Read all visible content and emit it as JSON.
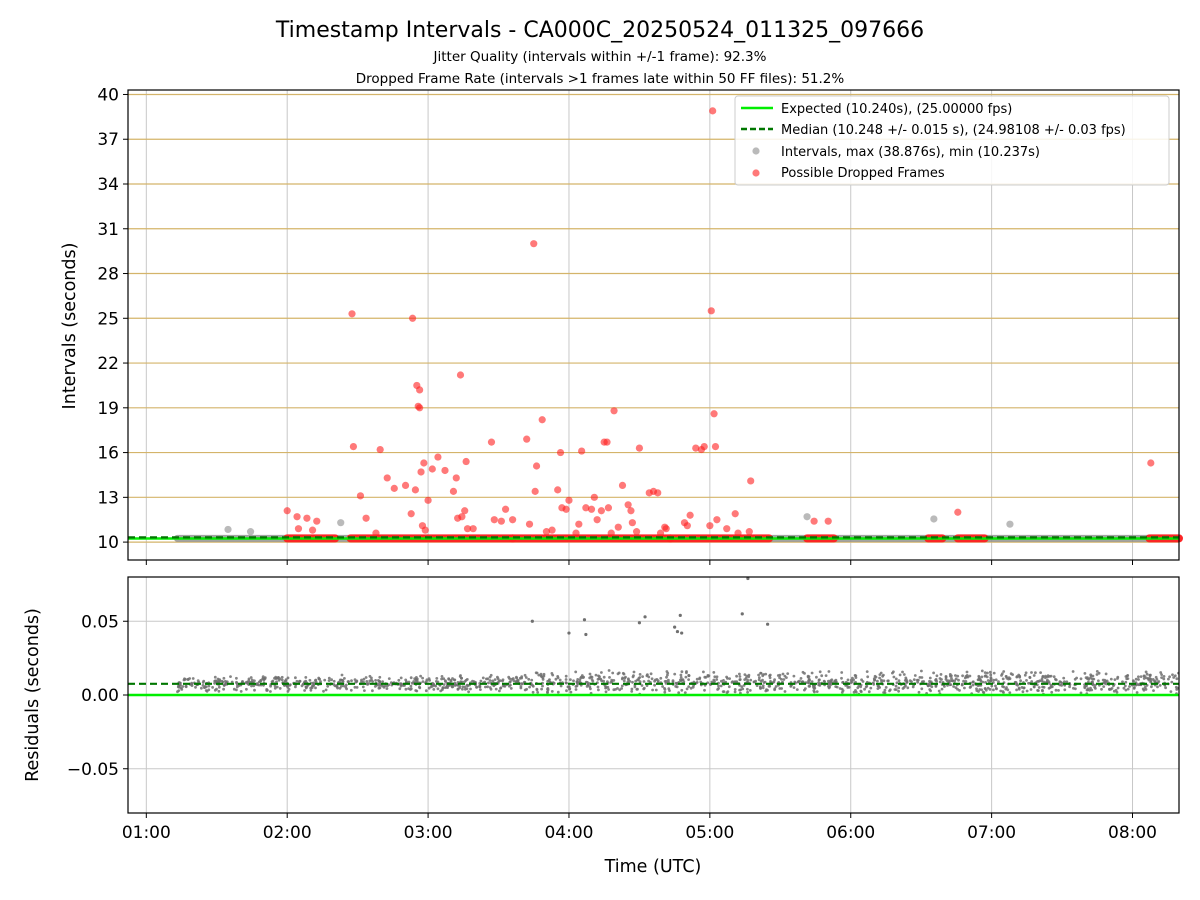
{
  "figure": {
    "title": "Timestamp Intervals - CA000C_20250524_011325_097666",
    "subtitle_1": "Jitter Quality (intervals within +/-1 frame): 92.3%",
    "subtitle_2": "Dropped Frame Rate (intervals >1 frames late within 50 FF files): 51.2%",
    "xlabel": "Time (UTC)"
  },
  "colors": {
    "expected": "#00ee00",
    "median": "#007700",
    "intervals": "#8c8c8c",
    "dropped": "#ff2020",
    "hgrid_top": "#d4b46a",
    "grid": "#c8c8c8",
    "residual_points": "#707070"
  },
  "chart_data": [
    {
      "type": "scatter",
      "ylabel": "Intervals (seconds)",
      "xlim_hours": [
        0.87,
        8.33
      ],
      "ylim": [
        8.8,
        40.3
      ],
      "x_ticks": [
        "01:00",
        "02:00",
        "03:00",
        "04:00",
        "05:00",
        "06:00",
        "07:00",
        "08:00"
      ],
      "x_tick_hours": [
        1,
        2,
        3,
        4,
        5,
        6,
        7,
        8
      ],
      "y_ticks": [
        10,
        13,
        16,
        19,
        22,
        25,
        28,
        31,
        34,
        37,
        40
      ],
      "grid": true,
      "legend_position": "top-right",
      "legend": [
        "Expected (10.240s), (25.00000 fps)",
        "Median (10.248 +/- 0.015 s), (24.98108 +/- 0.03 fps)",
        "Intervals, max (38.876s), min (10.237s)",
        "Possible Dropped Frames"
      ],
      "expected_value": 10.24,
      "median_value": 10.248,
      "interval_band": {
        "x_start": 1.22,
        "x_end": 8.33,
        "y": 10.25
      },
      "interval_outliers": [
        {
          "x": 1.58,
          "y": 10.85
        },
        {
          "x": 1.74,
          "y": 10.7
        },
        {
          "x": 2.38,
          "y": 11.3
        },
        {
          "x": 5.69,
          "y": 11.7
        },
        {
          "x": 6.59,
          "y": 11.55
        },
        {
          "x": 7.13,
          "y": 11.2
        }
      ],
      "dropped_bands": [
        [
          2.0,
          2.34
        ],
        [
          2.45,
          3.6
        ],
        [
          3.6,
          4.72
        ],
        [
          4.72,
          5.42
        ],
        [
          5.69,
          5.88
        ],
        [
          6.55,
          6.65
        ],
        [
          6.76,
          6.95
        ],
        [
          8.12,
          8.33
        ]
      ],
      "dropped_base_y": 10.25,
      "dropped_frames": [
        {
          "x": 2.0,
          "y": 12.1
        },
        {
          "x": 2.07,
          "y": 11.7
        },
        {
          "x": 2.08,
          "y": 10.9
        },
        {
          "x": 2.14,
          "y": 11.6
        },
        {
          "x": 2.18,
          "y": 10.8
        },
        {
          "x": 2.21,
          "y": 11.4
        },
        {
          "x": 2.46,
          "y": 25.3
        },
        {
          "x": 2.47,
          "y": 16.4
        },
        {
          "x": 2.52,
          "y": 13.1
        },
        {
          "x": 2.56,
          "y": 11.6
        },
        {
          "x": 2.63,
          "y": 10.6
        },
        {
          "x": 2.66,
          "y": 16.2
        },
        {
          "x": 2.71,
          "y": 14.3
        },
        {
          "x": 2.76,
          "y": 13.6
        },
        {
          "x": 2.84,
          "y": 13.8
        },
        {
          "x": 2.88,
          "y": 11.9
        },
        {
          "x": 2.89,
          "y": 25.0
        },
        {
          "x": 2.91,
          "y": 13.5
        },
        {
          "x": 2.92,
          "y": 20.5
        },
        {
          "x": 2.93,
          "y": 19.1
        },
        {
          "x": 2.94,
          "y": 19.0
        },
        {
          "x": 2.94,
          "y": 20.2
        },
        {
          "x": 2.95,
          "y": 14.7
        },
        {
          "x": 2.96,
          "y": 11.1
        },
        {
          "x": 2.97,
          "y": 15.3
        },
        {
          "x": 2.98,
          "y": 10.8
        },
        {
          "x": 3.0,
          "y": 12.8
        },
        {
          "x": 3.03,
          "y": 14.9
        },
        {
          "x": 3.07,
          "y": 15.7
        },
        {
          "x": 3.12,
          "y": 14.8
        },
        {
          "x": 3.18,
          "y": 13.4
        },
        {
          "x": 3.2,
          "y": 14.3
        },
        {
          "x": 3.21,
          "y": 11.6
        },
        {
          "x": 3.23,
          "y": 21.2
        },
        {
          "x": 3.24,
          "y": 11.7
        },
        {
          "x": 3.26,
          "y": 12.1
        },
        {
          "x": 3.27,
          "y": 15.4
        },
        {
          "x": 3.28,
          "y": 10.9
        },
        {
          "x": 3.32,
          "y": 10.9
        },
        {
          "x": 3.45,
          "y": 16.7
        },
        {
          "x": 3.47,
          "y": 11.5
        },
        {
          "x": 3.52,
          "y": 11.4
        },
        {
          "x": 3.55,
          "y": 12.2
        },
        {
          "x": 3.6,
          "y": 11.5
        },
        {
          "x": 3.7,
          "y": 16.9
        },
        {
          "x": 3.72,
          "y": 11.2
        },
        {
          "x": 3.75,
          "y": 30.0
        },
        {
          "x": 3.76,
          "y": 13.4
        },
        {
          "x": 3.77,
          "y": 15.1
        },
        {
          "x": 3.81,
          "y": 18.2
        },
        {
          "x": 3.84,
          "y": 10.7
        },
        {
          "x": 3.88,
          "y": 10.8
        },
        {
          "x": 3.92,
          "y": 13.5
        },
        {
          "x": 3.94,
          "y": 16.0
        },
        {
          "x": 3.95,
          "y": 12.3
        },
        {
          "x": 3.98,
          "y": 12.2
        },
        {
          "x": 4.0,
          "y": 12.8
        },
        {
          "x": 4.05,
          "y": 10.6
        },
        {
          "x": 4.07,
          "y": 11.2
        },
        {
          "x": 4.09,
          "y": 16.1
        },
        {
          "x": 4.12,
          "y": 12.3
        },
        {
          "x": 4.16,
          "y": 12.2
        },
        {
          "x": 4.18,
          "y": 13.0
        },
        {
          "x": 4.2,
          "y": 11.5
        },
        {
          "x": 4.23,
          "y": 12.1
        },
        {
          "x": 4.25,
          "y": 16.7
        },
        {
          "x": 4.27,
          "y": 16.7
        },
        {
          "x": 4.28,
          "y": 12.3
        },
        {
          "x": 4.3,
          "y": 10.6
        },
        {
          "x": 4.32,
          "y": 18.8
        },
        {
          "x": 4.35,
          "y": 11.0
        },
        {
          "x": 4.38,
          "y": 13.8
        },
        {
          "x": 4.42,
          "y": 12.5
        },
        {
          "x": 4.44,
          "y": 12.1
        },
        {
          "x": 4.45,
          "y": 11.3
        },
        {
          "x": 4.48,
          "y": 10.7
        },
        {
          "x": 4.5,
          "y": 16.3
        },
        {
          "x": 4.57,
          "y": 13.3
        },
        {
          "x": 4.6,
          "y": 13.4
        },
        {
          "x": 4.63,
          "y": 13.3
        },
        {
          "x": 4.65,
          "y": 10.6
        },
        {
          "x": 4.68,
          "y": 11.0
        },
        {
          "x": 4.69,
          "y": 10.9
        },
        {
          "x": 4.82,
          "y": 11.3
        },
        {
          "x": 4.84,
          "y": 11.1
        },
        {
          "x": 4.86,
          "y": 11.8
        },
        {
          "x": 4.9,
          "y": 16.3
        },
        {
          "x": 4.94,
          "y": 16.2
        },
        {
          "x": 4.96,
          "y": 16.4
        },
        {
          "x": 5.0,
          "y": 11.1
        },
        {
          "x": 5.01,
          "y": 25.5
        },
        {
          "x": 5.02,
          "y": 38.9
        },
        {
          "x": 5.03,
          "y": 18.6
        },
        {
          "x": 5.04,
          "y": 16.4
        },
        {
          "x": 5.05,
          "y": 11.5
        },
        {
          "x": 5.12,
          "y": 10.9
        },
        {
          "x": 5.18,
          "y": 11.9
        },
        {
          "x": 5.2,
          "y": 10.6
        },
        {
          "x": 5.28,
          "y": 10.7
        },
        {
          "x": 5.29,
          "y": 14.1
        },
        {
          "x": 5.74,
          "y": 11.4
        },
        {
          "x": 5.84,
          "y": 11.4
        },
        {
          "x": 6.76,
          "y": 12.0
        },
        {
          "x": 8.13,
          "y": 15.3
        }
      ]
    },
    {
      "type": "scatter",
      "ylabel": "Residuals (seconds)",
      "xlim_hours": [
        0.87,
        8.33
      ],
      "ylim": [
        -0.08,
        0.08
      ],
      "x_ticks": [
        "01:00",
        "02:00",
        "03:00",
        "04:00",
        "05:00",
        "06:00",
        "07:00",
        "08:00"
      ],
      "x_tick_hours": [
        1,
        2,
        3,
        4,
        5,
        6,
        7,
        8
      ],
      "y_ticks": [
        -0.05,
        0.0,
        0.05
      ],
      "y_tick_labels": [
        "−0.05",
        "0.00",
        "0.05"
      ],
      "grid": true,
      "expected_value": 0.0,
      "median_value": 0.0076,
      "residual_segments": [
        {
          "x_start": 1.22,
          "x_end": 3.65,
          "center": 0.0078,
          "spread": 0.006
        },
        {
          "x_start": 3.65,
          "x_end": 8.33,
          "center": 0.0085,
          "spread": 0.0085
        }
      ],
      "residual_outliers": [
        {
          "x": 3.74,
          "y": 0.05
        },
        {
          "x": 4.0,
          "y": 0.042
        },
        {
          "x": 4.11,
          "y": 0.051
        },
        {
          "x": 4.12,
          "y": 0.041
        },
        {
          "x": 4.5,
          "y": 0.049
        },
        {
          "x": 4.54,
          "y": 0.053
        },
        {
          "x": 4.75,
          "y": 0.046
        },
        {
          "x": 4.77,
          "y": 0.043
        },
        {
          "x": 4.79,
          "y": 0.054
        },
        {
          "x": 4.8,
          "y": 0.042
        },
        {
          "x": 5.23,
          "y": 0.055
        },
        {
          "x": 5.27,
          "y": 0.079
        },
        {
          "x": 5.41,
          "y": 0.048
        }
      ]
    }
  ]
}
